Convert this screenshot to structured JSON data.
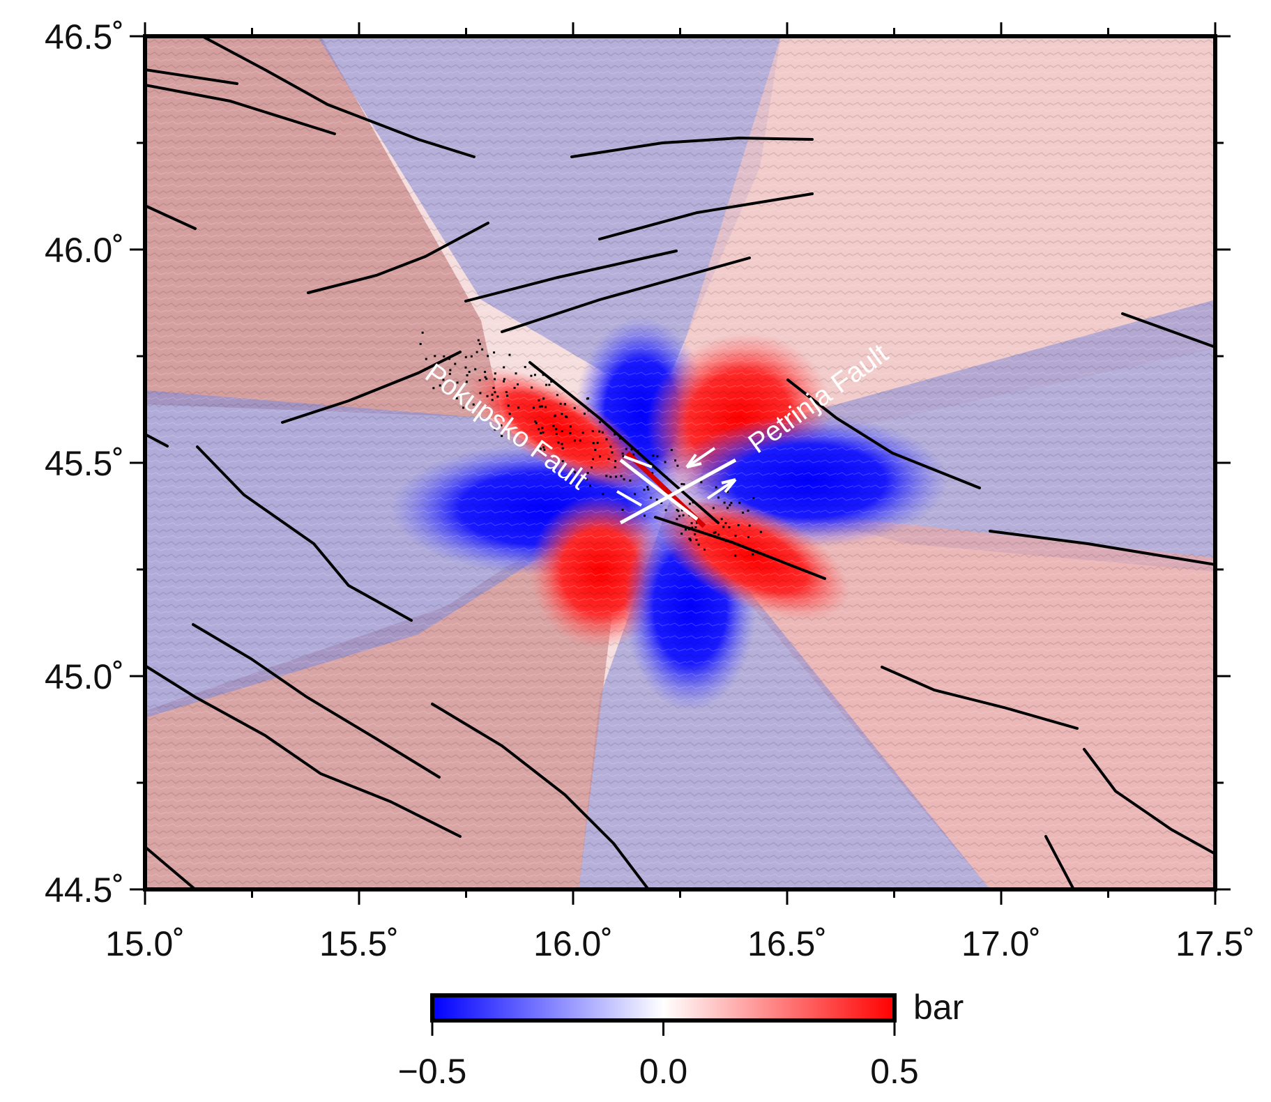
{
  "map": {
    "type": "stress-change-map",
    "lon_range": [
      15.0,
      17.5
    ],
    "lat_range": [
      44.5,
      46.5
    ],
    "x_ticks": [
      {
        "value": 15.0,
        "label": "15.0˚"
      },
      {
        "value": 15.5,
        "label": "15.5˚"
      },
      {
        "value": 16.0,
        "label": "16.0˚"
      },
      {
        "value": 16.5,
        "label": "16.5˚"
      },
      {
        "value": 17.0,
        "label": "17.0˚"
      },
      {
        "value": 17.5,
        "label": "17.5˚"
      }
    ],
    "y_ticks": [
      {
        "value": 46.5,
        "label": "46.5˚"
      },
      {
        "value": 46.0,
        "label": "46.0˚"
      },
      {
        "value": 45.5,
        "label": "45.5˚"
      },
      {
        "value": 45.0,
        "label": "45.0˚"
      },
      {
        "value": 44.5,
        "label": "44.5˚"
      }
    ],
    "fault_labels": [
      {
        "text": "Pokupsko Fault",
        "lon": 15.65,
        "lat": 45.7,
        "angle": 36
      },
      {
        "text": "Petrinja Fault",
        "lon": 16.43,
        "lat": 45.52,
        "angle": -36
      }
    ],
    "epicenter": {
      "lon": 16.23,
      "lat": 45.43
    },
    "colors": {
      "negative": "#0000ff",
      "zero": "#ffffff",
      "positive": "#ff0000",
      "fault": "#000000"
    }
  },
  "colorbar": {
    "unit": "bar",
    "min": -0.5,
    "max": 0.5,
    "ticks": [
      {
        "value": -0.5,
        "label": "−0.5"
      },
      {
        "value": 0.0,
        "label": "0.0"
      },
      {
        "value": 0.5,
        "label": "0.5"
      }
    ]
  }
}
